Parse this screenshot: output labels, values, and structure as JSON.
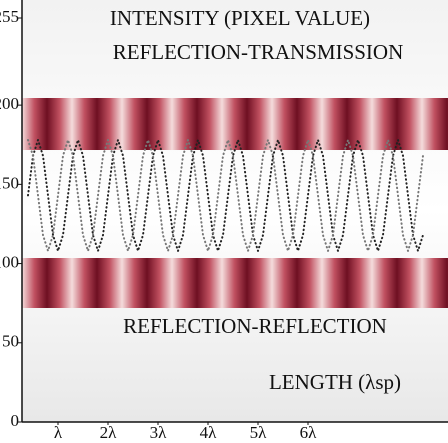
{
  "chart_data": {
    "type": "line",
    "title": "INTENSITY (PIXEL VALUE)",
    "annotations": [
      "REFLECTION-TRANSMISSION",
      "REFLECTION-REFLECTION",
      "LENGTH (λsp)"
    ],
    "x": [
      0.4,
      0.5,
      0.6,
      0.7,
      0.8,
      0.9,
      1.0,
      1.1,
      1.2,
      1.3,
      1.4,
      1.5,
      1.6,
      1.7,
      1.8,
      1.9,
      2.0,
      2.1,
      2.2,
      2.3,
      2.4,
      2.5,
      2.6,
      2.7,
      2.8,
      2.9,
      3.0,
      3.1,
      3.2,
      3.3,
      3.4,
      3.5,
      3.6,
      3.7,
      3.8,
      3.9,
      4.0,
      4.1,
      4.2,
      4.3,
      4.4,
      4.5,
      4.6,
      4.7,
      4.8,
      4.9,
      5.0,
      5.1,
      5.2,
      5.3,
      5.4,
      5.5,
      5.6,
      5.7,
      5.8,
      5.9,
      6.0,
      6.1,
      6.2,
      6.3,
      6.4,
      6.5,
      6.6,
      6.7,
      6.8,
      6.9,
      7.0,
      7.1,
      7.2,
      7.3,
      7.4,
      7.5,
      7.6,
      7.7,
      7.8,
      7.9,
      8.0,
      8.1,
      8.2,
      8.3
    ],
    "series": [
      {
        "color": "#222222",
        "values": [
          143,
          168,
          178,
          168,
          143,
          118,
          108,
          118,
          143,
          168,
          178,
          168,
          143,
          118,
          108,
          118,
          143,
          168,
          178,
          168,
          143,
          118,
          108,
          118,
          143,
          168,
          178,
          168,
          143,
          118,
          108,
          118,
          143,
          168,
          178,
          168,
          143,
          118,
          108,
          118,
          143,
          168,
          178,
          168,
          143,
          118,
          108,
          118,
          143,
          168,
          178,
          168,
          143,
          118,
          108,
          118,
          143,
          168,
          178,
          168,
          143,
          118,
          108,
          118,
          143,
          168,
          178,
          168,
          143,
          118,
          108,
          118,
          143,
          168,
          178,
          168,
          143,
          118,
          108,
          118
        ]
      },
      {
        "color": "#777777",
        "values": [
          178,
          168,
          143,
          118,
          108,
          118,
          143,
          168,
          178,
          168,
          143,
          118,
          108,
          118,
          143,
          168,
          178,
          168,
          143,
          118,
          108,
          118,
          143,
          168,
          178,
          168,
          143,
          118,
          108,
          118,
          143,
          168,
          178,
          168,
          143,
          118,
          108,
          118,
          143,
          168,
          178,
          168,
          143,
          118,
          108,
          118,
          143,
          168,
          178,
          168,
          143,
          118,
          108,
          118,
          143,
          168,
          178,
          168,
          143,
          118,
          108,
          118,
          143,
          168,
          178,
          168,
          143,
          118,
          108,
          118,
          143,
          168,
          178,
          168,
          143,
          118,
          108,
          118,
          143,
          168
        ]
      }
    ],
    "xlim": [
      0.28,
      8.8
    ],
    "xticks": [
      {
        "value": 1,
        "label": "λ"
      },
      {
        "value": 2,
        "label": "2λ"
      },
      {
        "value": 3,
        "label": "3λ"
      },
      {
        "value": 4,
        "label": "4λ"
      },
      {
        "value": 5,
        "label": "5λ"
      },
      {
        "value": 6,
        "label": "6λ"
      }
    ],
    "ylim": [
      0,
      255
    ],
    "yticks": [
      0,
      50,
      100,
      150,
      200,
      255
    ]
  }
}
